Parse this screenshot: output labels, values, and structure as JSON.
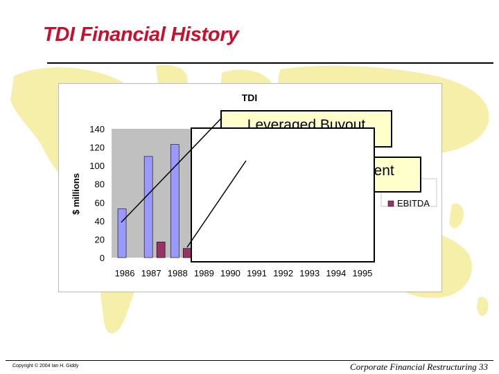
{
  "slide": {
    "title": "TDI Financial History",
    "copyright": "Copyright © 2004 Ian H. Giddy",
    "footer": "Corporate Financial Restructuring 33"
  },
  "callouts": {
    "leveraged_buyout": "Leveraged Buyout",
    "new_management": "New Management"
  },
  "colors": {
    "title": "#c8102e",
    "map": "#f6efaa",
    "callout_bg": "#ffffcc",
    "plot_area": "#c0c0c0",
    "series_1": "#9999ff",
    "series_2": "#993366"
  },
  "chart_data": {
    "type": "bar",
    "title": "TDI",
    "ylabel": "$ millions",
    "xlabel": "",
    "categories": [
      "1986",
      "1987",
      "1988",
      "1989",
      "1990",
      "1991",
      "1992",
      "1993",
      "1994",
      "1995"
    ],
    "yticks": [
      "0",
      "20",
      "40",
      "60",
      "80",
      "100",
      "120",
      "140"
    ],
    "ylim": [
      0,
      140
    ],
    "grid": false,
    "legend_position": "right",
    "series": [
      {
        "name": "",
        "color": "#9999ff",
        "values": [
          53,
          110,
          123,
          null,
          null,
          null,
          null,
          null,
          null,
          null
        ]
      },
      {
        "name": "EBITDA",
        "color": "#993366",
        "values": [
          null,
          17,
          10,
          null,
          null,
          null,
          null,
          null,
          null,
          null
        ]
      }
    ]
  }
}
